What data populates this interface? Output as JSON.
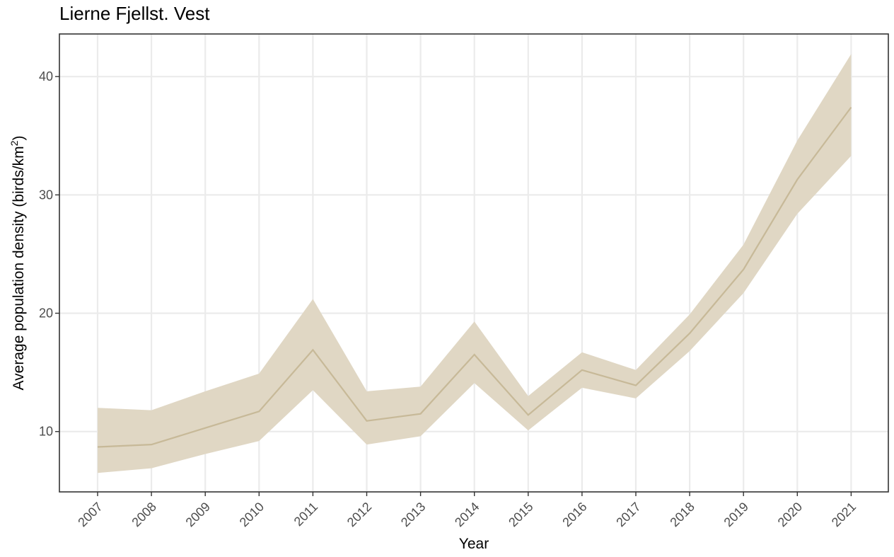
{
  "chart_data": {
    "type": "line",
    "title": "Lierne Fjellst. Vest",
    "xlabel": "Year",
    "ylabel": {
      "text": "Average population density (birds/km",
      "superscript": "2",
      "close": ")"
    },
    "x": [
      "2007",
      "2008",
      "2009",
      "2010",
      "2011",
      "2012",
      "2013",
      "2014",
      "2015",
      "2016",
      "2017",
      "2018",
      "2019",
      "2020",
      "2021"
    ],
    "series": [
      {
        "values": [
          8.7,
          8.9,
          10.3,
          11.7,
          16.9,
          10.9,
          11.5,
          16.5,
          11.4,
          15.2,
          13.9,
          18.3,
          23.7,
          31.3,
          37.4
        ],
        "lower": [
          6.5,
          6.9,
          8.1,
          9.2,
          13.5,
          8.9,
          9.6,
          14.1,
          10.1,
          13.7,
          12.8,
          16.8,
          21.7,
          28.4,
          33.3
        ],
        "upper": [
          12.0,
          11.8,
          13.4,
          14.9,
          21.2,
          13.4,
          13.8,
          19.3,
          13.0,
          16.7,
          15.2,
          19.9,
          25.8,
          34.6,
          41.9
        ]
      }
    ],
    "y_ticks": [
      "10",
      "20",
      "30",
      "40"
    ],
    "ylim": [
      4.9,
      43.6
    ],
    "grid": true,
    "line_color": "#c7b998",
    "ribbon_color": "#e0d7c4"
  }
}
